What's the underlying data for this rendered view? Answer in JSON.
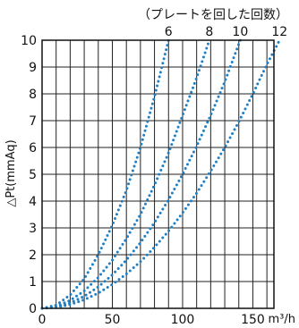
{
  "chart_data": {
    "type": "line",
    "header": "（プレートを回した回数）",
    "ylabel": "△Pt(mmAq)",
    "xlabel": "m³/h",
    "xlim": [
      0,
      165
    ],
    "ylim": [
      0,
      10
    ],
    "x_ticks": [
      "0",
      "50",
      "100",
      "150"
    ],
    "y_ticks": [
      "0",
      "1",
      "2",
      "3",
      "4",
      "5",
      "6",
      "7",
      "8",
      "9",
      "10"
    ],
    "grid": true,
    "line_style": "dotted",
    "line_color": "#1f7fc4",
    "series": [
      {
        "name": "6",
        "points": [
          [
            0,
            0
          ],
          [
            10,
            0.12
          ],
          [
            20,
            0.5
          ],
          [
            30,
            1.1
          ],
          [
            40,
            2.0
          ],
          [
            50,
            3.1
          ],
          [
            60,
            4.4
          ],
          [
            70,
            6.0
          ],
          [
            80,
            7.9
          ],
          [
            90,
            10.0
          ]
        ]
      },
      {
        "name": "8",
        "points": [
          [
            0,
            0
          ],
          [
            10,
            0.07
          ],
          [
            20,
            0.3
          ],
          [
            30,
            0.65
          ],
          [
            40,
            1.15
          ],
          [
            50,
            1.8
          ],
          [
            60,
            2.6
          ],
          [
            70,
            3.5
          ],
          [
            80,
            4.6
          ],
          [
            90,
            5.8
          ],
          [
            100,
            7.2
          ],
          [
            110,
            8.6
          ],
          [
            119,
            10.0
          ]
        ]
      },
      {
        "name": "10",
        "points": [
          [
            0,
            0
          ],
          [
            10,
            0.05
          ],
          [
            20,
            0.2
          ],
          [
            30,
            0.45
          ],
          [
            40,
            0.8
          ],
          [
            50,
            1.25
          ],
          [
            60,
            1.8
          ],
          [
            70,
            2.45
          ],
          [
            80,
            3.2
          ],
          [
            90,
            4.05
          ],
          [
            100,
            5.0
          ],
          [
            110,
            6.05
          ],
          [
            120,
            7.2
          ],
          [
            130,
            8.45
          ],
          [
            141,
            10.0
          ]
        ]
      },
      {
        "name": "12",
        "points": [
          [
            0,
            0
          ],
          [
            10,
            0.03
          ],
          [
            20,
            0.14
          ],
          [
            30,
            0.32
          ],
          [
            40,
            0.57
          ],
          [
            50,
            0.89
          ],
          [
            60,
            1.28
          ],
          [
            70,
            1.74
          ],
          [
            80,
            2.28
          ],
          [
            90,
            2.88
          ],
          [
            100,
            3.56
          ],
          [
            110,
            4.3
          ],
          [
            120,
            5.12
          ],
          [
            130,
            6.0
          ],
          [
            140,
            6.96
          ],
          [
            150,
            8.0
          ],
          [
            160,
            9.1
          ],
          [
            169,
            10.0
          ]
        ]
      }
    ]
  }
}
